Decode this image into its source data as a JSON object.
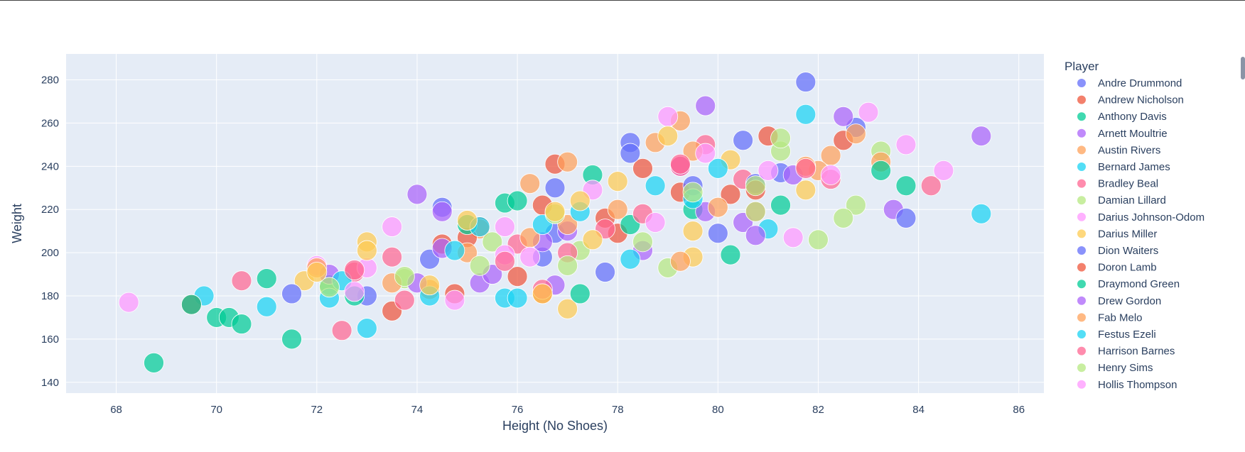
{
  "chart_data": {
    "type": "scatter",
    "xlabel": "Height (No Shoes)",
    "ylabel": "Weight",
    "xlim": [
      67,
      86.5
    ],
    "ylim": [
      135,
      292
    ],
    "xticks": [
      68,
      70,
      72,
      74,
      76,
      78,
      80,
      82,
      84,
      86
    ],
    "yticks": [
      140,
      160,
      180,
      200,
      220,
      240,
      260,
      280
    ],
    "grid": true,
    "legend_title": "Player",
    "legend_position": "right",
    "series": [
      {
        "name": "Andre Drummond",
        "color": "#636efa",
        "points": [
          [
            81.75,
            279
          ],
          [
            80.5,
            252
          ],
          [
            78.25,
            251
          ],
          [
            76.75,
            230
          ],
          [
            74.5,
            221
          ]
        ]
      },
      {
        "name": "Andrew Nicholson",
        "color": "#EF553B",
        "points": [
          [
            81,
            254
          ],
          [
            78.5,
            239
          ],
          [
            76.75,
            241
          ],
          [
            75.25,
            212
          ],
          [
            73.5,
            173
          ]
        ]
      },
      {
        "name": "Anthony Davis",
        "color": "#00cc96",
        "points": [
          [
            68.75,
            149
          ],
          [
            70,
            170
          ],
          [
            71,
            188
          ],
          [
            72.25,
            185
          ],
          [
            80.25,
            199
          ]
        ]
      },
      {
        "name": "Arnett Moultrie",
        "color": "#ab63fa",
        "points": [
          [
            79.75,
            268
          ],
          [
            85.25,
            254
          ],
          [
            74,
            227
          ],
          [
            83.5,
            220
          ],
          [
            80.5,
            214
          ]
        ]
      },
      {
        "name": "Austin Rivers",
        "color": "#FFA15A",
        "points": [
          [
            79.25,
            261
          ],
          [
            78.75,
            251
          ],
          [
            77,
            242
          ],
          [
            82.25,
            245
          ],
          [
            75.25,
            211
          ]
        ]
      },
      {
        "name": "Bernard James",
        "color": "#19d3f3",
        "points": [
          [
            81.75,
            264
          ],
          [
            85.25,
            218
          ],
          [
            73,
            165
          ],
          [
            69.75,
            180
          ],
          [
            75.75,
            179
          ]
        ]
      },
      {
        "name": "Bradley Beal",
        "color": "#FF6692",
        "points": [
          [
            84.25,
            231
          ],
          [
            72.5,
            164
          ],
          [
            70.5,
            187
          ],
          [
            73.5,
            198
          ],
          [
            80.75,
            219
          ]
        ]
      },
      {
        "name": "Damian Lillard",
        "color": "#B6E880",
        "points": [
          [
            82,
            206
          ],
          [
            83.25,
            247
          ],
          [
            79,
            193
          ],
          [
            82.75,
            222
          ],
          [
            75.5,
            205
          ]
        ]
      },
      {
        "name": "Darius Johnson-Odom",
        "color": "#FF97FF",
        "points": [
          [
            68.25,
            177
          ],
          [
            73.5,
            212
          ],
          [
            83,
            265
          ],
          [
            84.5,
            238
          ],
          [
            79,
            263
          ]
        ]
      },
      {
        "name": "Darius Miller",
        "color": "#FECB52",
        "points": [
          [
            73,
            205
          ],
          [
            77,
            174
          ],
          [
            79.5,
            198
          ],
          [
            71.75,
            187
          ],
          [
            80.25,
            243
          ]
        ]
      },
      {
        "name": "Dion Waiters",
        "color": "#636efa",
        "points": [
          [
            71.5,
            181
          ],
          [
            83.75,
            216
          ],
          [
            80,
            209
          ],
          [
            77.75,
            191
          ],
          [
            82.75,
            258
          ]
        ]
      },
      {
        "name": "Doron Lamb",
        "color": "#EF553B",
        "points": [
          [
            74.75,
            181
          ],
          [
            76.5,
            222
          ],
          [
            79.25,
            228
          ],
          [
            80.25,
            227
          ],
          [
            82.5,
            252
          ]
        ]
      },
      {
        "name": "Draymond Green",
        "color": "#00cc96",
        "points": [
          [
            71.5,
            160
          ],
          [
            70.25,
            170
          ],
          [
            77.25,
            181
          ],
          [
            83.75,
            231
          ],
          [
            75.75,
            223
          ]
        ]
      },
      {
        "name": "Drew Gordon",
        "color": "#ab63fa",
        "points": [
          [
            74.5,
            219
          ],
          [
            82.5,
            263
          ],
          [
            75.25,
            186
          ],
          [
            79.25,
            240
          ],
          [
            76.75,
            185
          ]
        ]
      },
      {
        "name": "Fab Melo",
        "color": "#FFA15A",
        "points": [
          [
            76.25,
            232
          ],
          [
            83.25,
            242
          ],
          [
            74.25,
            183
          ],
          [
            79.25,
            196
          ],
          [
            82,
            238
          ]
        ]
      },
      {
        "name": "Festus Ezeli",
        "color": "#19d3f3",
        "points": [
          [
            71,
            175
          ],
          [
            78.75,
            231
          ],
          [
            80,
            239
          ],
          [
            81,
            211
          ],
          [
            72.25,
            179
          ]
        ]
      },
      {
        "name": "Harrison Barnes",
        "color": "#FF6692",
        "points": [
          [
            79.25,
            240
          ],
          [
            79.75,
            250
          ],
          [
            76,
            204
          ],
          [
            80.5,
            234
          ],
          [
            72.75,
            191
          ]
        ]
      },
      {
        "name": "Henry Sims",
        "color": "#B6E880",
        "points": [
          [
            82.5,
            216
          ],
          [
            81.25,
            247
          ],
          [
            80.75,
            219
          ],
          [
            73.75,
            188
          ],
          [
            77.25,
            201
          ]
        ]
      },
      {
        "name": "Hollis Thompson",
        "color": "#FF97FF",
        "points": [
          [
            73,
            193
          ],
          [
            81.5,
            207
          ],
          [
            83.75,
            250
          ],
          [
            75.75,
            199
          ],
          [
            72,
            194
          ]
        ]
      },
      {
        "color": "#636efa",
        "points": [
          [
            73,
            180
          ],
          [
            74.25,
            197
          ],
          [
            76.5,
            198
          ],
          [
            78.25,
            246
          ],
          [
            79.5,
            231
          ],
          [
            81.25,
            237
          ],
          [
            76.75,
            209
          ],
          [
            80.75,
            232
          ]
        ]
      },
      {
        "color": "#EF553B",
        "points": [
          [
            69.5,
            176
          ],
          [
            75,
            207
          ],
          [
            76,
            189
          ],
          [
            77.75,
            216
          ],
          [
            78,
            209
          ],
          [
            80.75,
            229
          ],
          [
            74.5,
            204
          ],
          [
            76.5,
            181
          ]
        ]
      },
      {
        "color": "#00cc96",
        "points": [
          [
            69.5,
            176
          ],
          [
            70.5,
            167
          ],
          [
            72.75,
            180
          ],
          [
            75,
            213
          ],
          [
            76,
            224
          ],
          [
            78.25,
            213
          ],
          [
            81.25,
            222
          ],
          [
            83.25,
            238
          ],
          [
            79.5,
            220
          ],
          [
            77.5,
            236
          ]
        ]
      },
      {
        "color": "#ab63fa",
        "points": [
          [
            72.25,
            190
          ],
          [
            74,
            186
          ],
          [
            75.5,
            190
          ],
          [
            76.5,
            205
          ],
          [
            78.5,
            201
          ],
          [
            80.75,
            208
          ],
          [
            81.5,
            236
          ],
          [
            79.75,
            219
          ],
          [
            77,
            210
          ],
          [
            74.5,
            202
          ]
        ]
      },
      {
        "color": "#FFA15A",
        "points": [
          [
            72,
            193
          ],
          [
            73.5,
            186
          ],
          [
            75,
            200
          ],
          [
            76.25,
            207
          ],
          [
            78,
            220
          ],
          [
            80,
            221
          ],
          [
            81.75,
            240
          ],
          [
            82.75,
            255
          ],
          [
            77,
            213
          ],
          [
            79.5,
            247
          ]
        ]
      },
      {
        "color": "#19d3f3",
        "points": [
          [
            72.5,
            187
          ],
          [
            74.25,
            180
          ],
          [
            75.25,
            212
          ],
          [
            76,
            179
          ],
          [
            77.25,
            219
          ],
          [
            78.25,
            197
          ],
          [
            79.5,
            225
          ],
          [
            76.5,
            213
          ],
          [
            74.75,
            201
          ]
        ]
      },
      {
        "color": "#FF6692",
        "points": [
          [
            72.75,
            192
          ],
          [
            73.75,
            178
          ],
          [
            75.75,
            196
          ],
          [
            77,
            200
          ],
          [
            78.5,
            218
          ],
          [
            79.25,
            241
          ],
          [
            81.75,
            239
          ],
          [
            82.25,
            234
          ],
          [
            76.5,
            183
          ],
          [
            77.75,
            211
          ]
        ]
      },
      {
        "color": "#B6E880",
        "points": [
          [
            72.25,
            184
          ],
          [
            73.75,
            189
          ],
          [
            75.25,
            194
          ],
          [
            77,
            194
          ],
          [
            78.5,
            205
          ],
          [
            79.5,
            228
          ],
          [
            81.25,
            253
          ],
          [
            76.75,
            218
          ],
          [
            80.75,
            231
          ]
        ]
      },
      {
        "color": "#FF97FF",
        "points": [
          [
            72.75,
            182
          ],
          [
            74.75,
            178
          ],
          [
            75.75,
            212
          ],
          [
            77.5,
            229
          ],
          [
            78.75,
            214
          ],
          [
            79.75,
            246
          ],
          [
            82.25,
            236
          ],
          [
            81,
            238
          ],
          [
            76.25,
            198
          ]
        ]
      },
      {
        "color": "#FECB52",
        "points": [
          [
            72,
            191
          ],
          [
            73,
            201
          ],
          [
            74.25,
            185
          ],
          [
            75,
            215
          ],
          [
            76.5,
            181
          ],
          [
            77.5,
            206
          ],
          [
            78,
            233
          ],
          [
            79,
            254
          ],
          [
            79.5,
            210
          ],
          [
            81.75,
            229
          ],
          [
            76.75,
            219
          ],
          [
            77.25,
            224
          ]
        ]
      }
    ]
  }
}
